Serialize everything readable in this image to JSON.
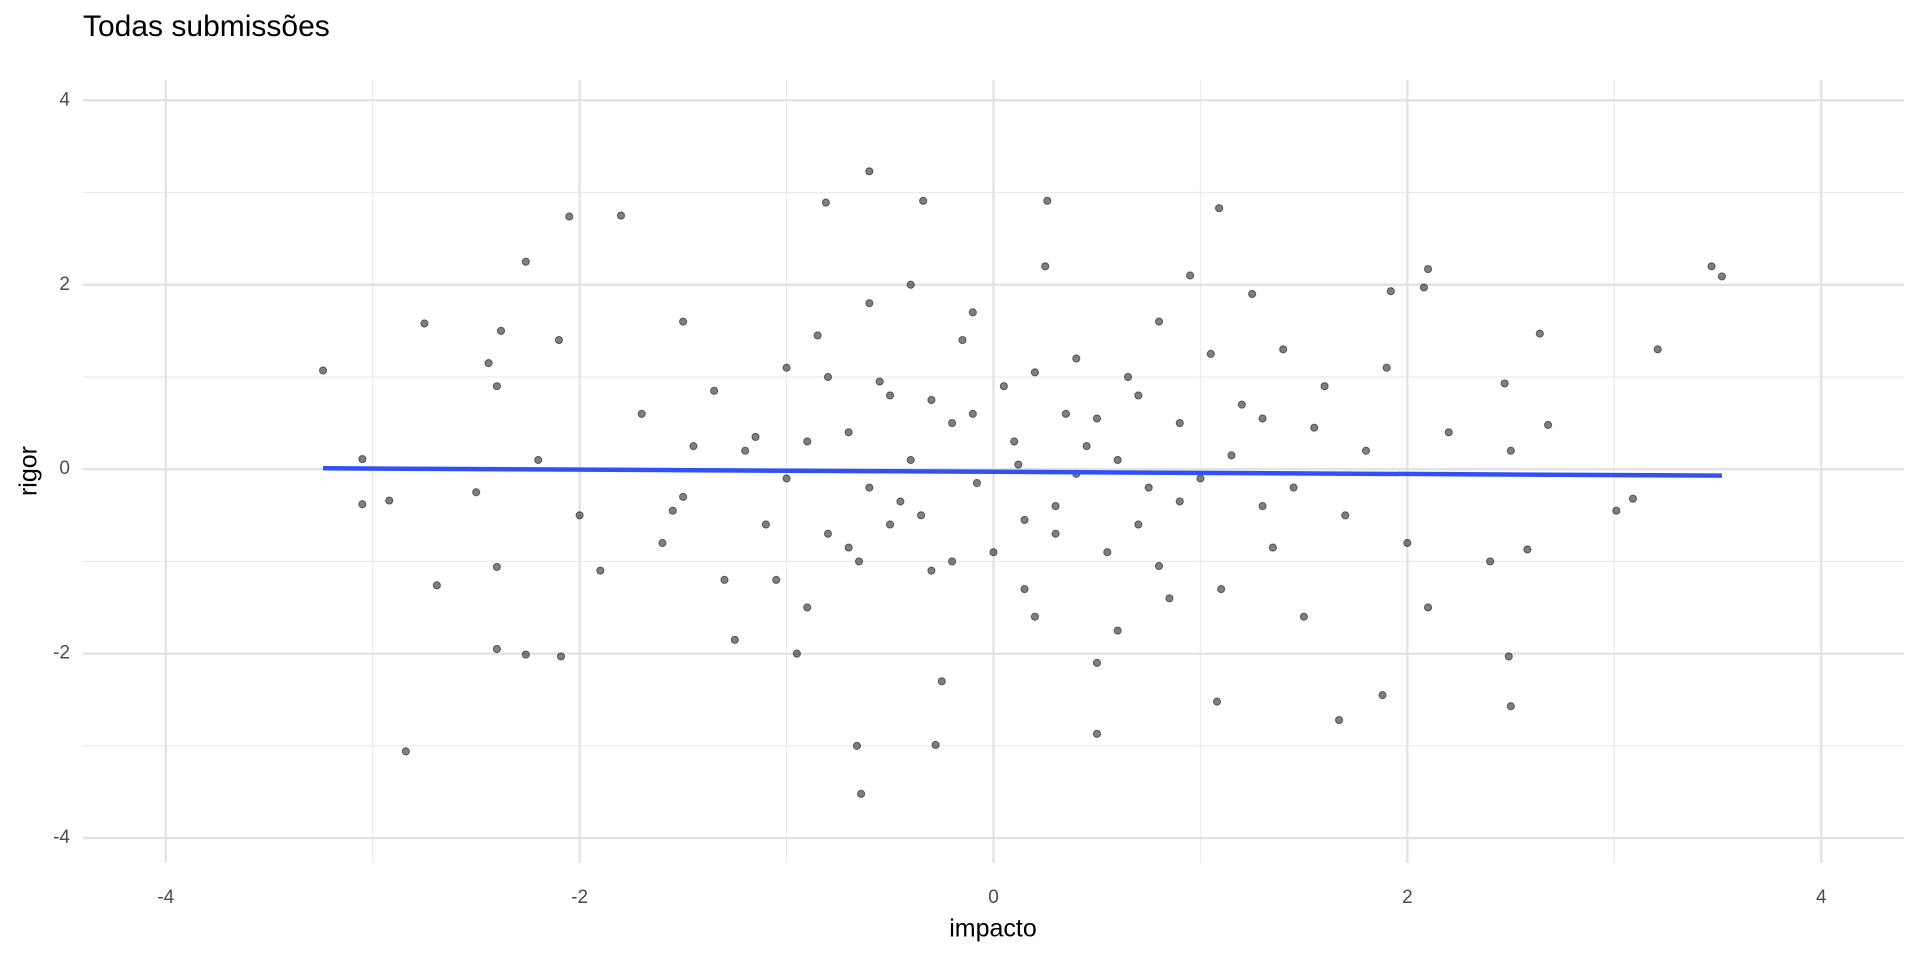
{
  "chart_data": {
    "type": "scatter",
    "title": "Todas submissões",
    "x_label": "impacto",
    "y_label": "rigor",
    "xlim": [
      -4.4,
      4.4
    ],
    "ylim": [
      -4.27,
      4.22
    ],
    "xticks": [
      -4,
      -2,
      0,
      2,
      4
    ],
    "yticks": [
      -4,
      -2,
      0,
      2,
      4
    ],
    "x_minor_ticks": [
      -3,
      -1,
      1,
      3
    ],
    "y_minor_ticks": [
      -3,
      -1,
      1,
      3
    ],
    "grid": true,
    "points": {
      "color": "#000000",
      "opacity": 0.5,
      "x": [
        -3.24,
        -3.05,
        -3.05,
        -2.92,
        -2.84,
        -2.75,
        -2.38,
        -2.44,
        -2.26,
        -2.05,
        -1.8,
        -0.6,
        -0.34,
        0.26,
        -0.81,
        1.09,
        -0.64,
        -0.66,
        -0.28,
        0.5,
        3.47,
        3.52,
        3.21,
        3.01,
        3.09,
        2.64,
        2.68,
        2.49,
        2.5,
        2.58,
        2.47,
        1.08,
        1.88,
        1.67,
        -2.4,
        -2.26,
        -2.09,
        -2.69,
        -2.4,
        2.1,
        2.08,
        1.92,
        0.1,
        -0.5,
        0.7,
        -1.2,
        1.3,
        0.4,
        -0.3,
        0.9,
        -0.8,
        1.6,
        -1.5,
        0.2,
        -0.1,
        0.6,
        -0.6,
        1.1,
        -1.0,
        0.3,
        -0.2,
        1.8,
        -1.7,
        0.5,
        -0.4,
        2.0,
        -2.0,
        0.8,
        -0.9,
        1.4,
        -1.3,
        0.0,
        0.05,
        -0.7,
        0.75,
        1.2,
        -1.1,
        0.35,
        -0.35,
        2.2,
        -2.2,
        0.15,
        -0.15,
        1.0,
        -1.0,
        0.55,
        -0.55,
        1.5,
        -1.5,
        0.25,
        -0.25,
        1.9,
        -1.9,
        0.45,
        -0.45,
        0.65,
        -0.65,
        1.15,
        -1.15,
        0.85,
        -0.85,
        1.7,
        -1.6,
        0.12,
        -0.08,
        0.3,
        -0.3,
        2.4,
        -2.4,
        1.25,
        -1.25,
        0.95,
        -0.95,
        0.5,
        -0.5,
        1.35,
        -1.35,
        0.2,
        -0.2,
        0.9,
        -0.9,
        1.55,
        -1.55,
        0.6,
        -0.6,
        2.1,
        -2.1,
        0.4,
        -0.4,
        1.05,
        -1.05,
        0.7,
        -0.7,
        1.45,
        -1.45,
        0.15,
        -0.1,
        2.5,
        -2.5,
        0.8,
        -0.8,
        1.3
      ],
      "y": [
        1.07,
        0.11,
        -0.38,
        -0.34,
        -3.06,
        1.58,
        1.5,
        1.15,
        2.25,
        2.74,
        2.75,
        3.23,
        2.91,
        2.91,
        2.89,
        2.83,
        -3.52,
        -3.0,
        -2.99,
        -2.87,
        2.2,
        2.09,
        1.3,
        -0.45,
        -0.32,
        1.47,
        0.48,
        -2.03,
        -2.57,
        -0.87,
        0.93,
        -2.52,
        -2.45,
        -2.72,
        -1.95,
        -2.01,
        -2.03,
        -1.26,
        -1.06,
        2.17,
        1.97,
        1.93,
        0.3,
        0.8,
        -0.6,
        0.2,
        -0.4,
        1.2,
        -1.1,
        0.5,
        -0.7,
        0.9,
        -0.3,
        -1.6,
        1.7,
        0.1,
        -0.2,
        -1.3,
        1.1,
        -0.4,
        0.5,
        0.2,
        0.6,
        -2.1,
        2.0,
        -0.8,
        -0.5,
        1.6,
        -1.5,
        1.3,
        -1.2,
        -0.9,
        0.9,
        0.4,
        -0.2,
        0.7,
        -0.6,
        0.6,
        -0.5,
        0.4,
        0.1,
        -1.3,
        1.4,
        -0.1,
        -0.1,
        -0.9,
        0.95,
        -1.6,
        1.6,
        2.2,
        -2.3,
        1.1,
        -1.1,
        0.25,
        -0.35,
        1.0,
        -1.0,
        0.15,
        0.35,
        -1.4,
        1.45,
        -0.5,
        -0.8,
        0.05,
        -0.15,
        -0.7,
        0.75,
        -1.0,
        0.9,
        1.9,
        -1.85,
        2.1,
        -2.0,
        0.55,
        -0.6,
        -0.85,
        0.85,
        1.05,
        -1.0,
        -0.35,
        0.3,
        0.45,
        -0.45,
        -1.75,
        1.8,
        -1.5,
        1.4,
        -0.05,
        0.1,
        1.25,
        -1.2,
        0.8,
        -0.85,
        -0.2,
        0.25,
        -0.55,
        0.6,
        0.2,
        -0.25,
        -1.05,
        1.0,
        0.55
      ]
    },
    "fit_line": {
      "color": "#3050f8",
      "x": [
        -3.24,
        3.52
      ],
      "y": [
        0.01,
        -0.07
      ]
    }
  }
}
